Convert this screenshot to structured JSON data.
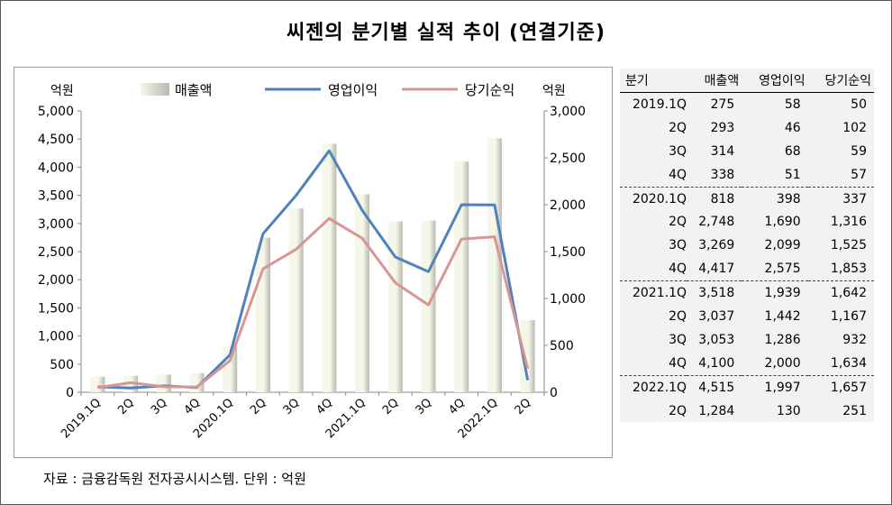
{
  "title": "씨젠의 분기별 실적 추이 (연결기준)",
  "source": "자료 : 금융감독원 전자공시시스템. 단위 : 억원",
  "colors": {
    "bar_light": "#f5f7e8",
    "bar_dark": "#b9b9b0",
    "operating_line": "#4f81bd",
    "net_line": "#d99594",
    "table_bg": "#f2f2f2"
  },
  "chart_data": {
    "type": "bar",
    "categories": [
      "2019.1Q",
      "2Q",
      "3Q",
      "4Q",
      "2020.1Q",
      "2Q",
      "3Q",
      "4Q",
      "2021.1Q",
      "2Q",
      "3Q",
      "4Q",
      "2022.1Q",
      "2Q"
    ],
    "left_axis_label": "억원",
    "right_axis_label": "억원",
    "left_ylim": [
      0,
      5000
    ],
    "right_ylim": [
      0,
      3000
    ],
    "left_ticks": [
      "0",
      "500",
      "1,000",
      "1,500",
      "2,000",
      "2,500",
      "3,000",
      "3,500",
      "4,000",
      "4,500",
      "5,000"
    ],
    "right_ticks": [
      "0",
      "500",
      "1,000",
      "1,500",
      "2,000",
      "2,500",
      "3,000"
    ],
    "legend_position": "top",
    "grid": false,
    "series": [
      {
        "name": "매출액",
        "type": "bar",
        "axis": "left",
        "values": [
          275,
          293,
          314,
          338,
          818,
          2748,
          3269,
          4417,
          3518,
          3037,
          3053,
          4100,
          4515,
          1284
        ]
      },
      {
        "name": "영업이익",
        "type": "line",
        "axis": "right",
        "values": [
          58,
          46,
          68,
          51,
          398,
          1690,
          2099,
          2575,
          1939,
          1442,
          1286,
          2000,
          1997,
          130
        ]
      },
      {
        "name": "당기순익",
        "type": "line",
        "axis": "right",
        "values": [
          50,
          102,
          59,
          57,
          337,
          1316,
          1525,
          1853,
          1642,
          1167,
          932,
          1634,
          1657,
          251
        ]
      }
    ]
  },
  "table": {
    "headers": [
      "분기",
      "매출액",
      "영업이익",
      "당기순익"
    ],
    "rows": [
      [
        "2019.1Q",
        "275",
        "58",
        "50"
      ],
      [
        "2Q",
        "293",
        "46",
        "102"
      ],
      [
        "3Q",
        "314",
        "68",
        "59"
      ],
      [
        "4Q",
        "338",
        "51",
        "57"
      ],
      [
        "2020.1Q",
        "818",
        "398",
        "337"
      ],
      [
        "2Q",
        "2,748",
        "1,690",
        "1,316"
      ],
      [
        "3Q",
        "3,269",
        "2,099",
        "1,525"
      ],
      [
        "4Q",
        "4,417",
        "2,575",
        "1,853"
      ],
      [
        "2021.1Q",
        "3,518",
        "1,939",
        "1,642"
      ],
      [
        "2Q",
        "3,037",
        "1,442",
        "1,167"
      ],
      [
        "3Q",
        "3,053",
        "1,286",
        "932"
      ],
      [
        "4Q",
        "4,100",
        "2,000",
        "1,634"
      ],
      [
        "2022.1Q",
        "4,515",
        "1,997",
        "1,657"
      ],
      [
        "2Q",
        "1,284",
        "130",
        "251"
      ]
    ]
  }
}
